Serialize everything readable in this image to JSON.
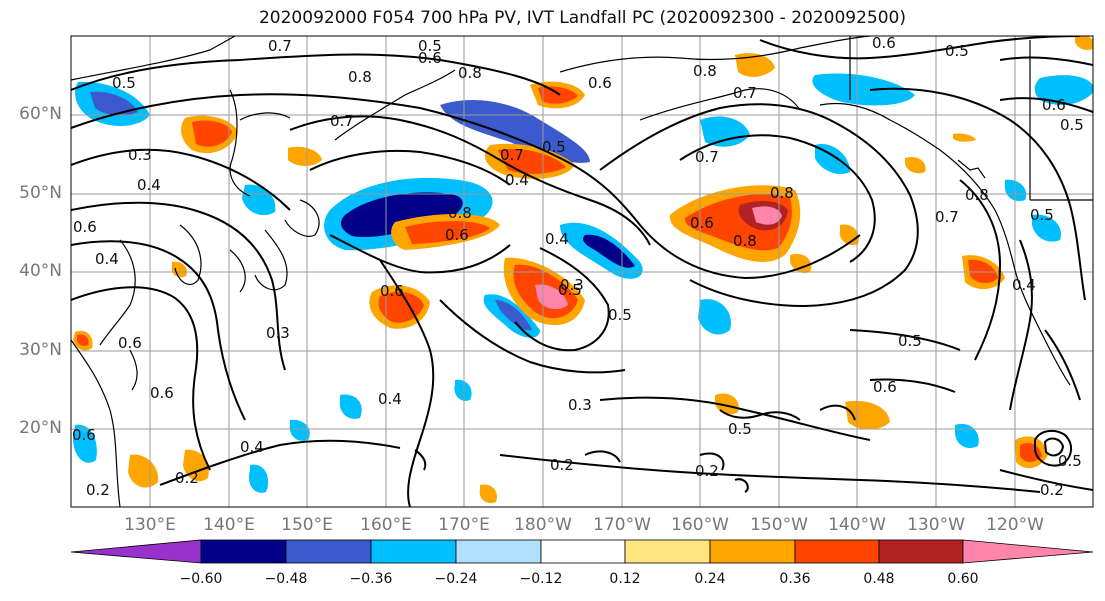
{
  "title": "2020092000 F054 700 hPa PV, IVT Landfall PC (2020092300 - 2020092500)",
  "lat_labels": [
    "60°N",
    "50°N",
    "40°N",
    "30°N",
    "20°N"
  ],
  "lon_labels": [
    "130°E",
    "140°E",
    "150°E",
    "160°E",
    "170°E",
    "180°W",
    "170°W",
    "160°W",
    "150°W",
    "140°W",
    "130°W",
    "120°W"
  ],
  "colorbar": {
    "ticks": [
      "−0.60",
      "−0.48",
      "−0.36",
      "−0.24",
      "−0.12",
      "0.12",
      "0.24",
      "0.36",
      "0.48",
      "0.60"
    ],
    "colors": [
      "#9932cc",
      "#00008b",
      "#3a5acd",
      "#00bfff",
      "#b0e0fb",
      "#ffffff",
      "#ffe680",
      "#ffa500",
      "#ff4500",
      "#b22222",
      "#ff85ab"
    ]
  },
  "contour_labels": [
    "0.7",
    "0.5",
    "0.6",
    "0.8",
    "0.5",
    "0.8",
    "0.6",
    "0.8",
    "0.7",
    "0.6",
    "0.5",
    "0.6",
    "0.5",
    "0.3",
    "0.7",
    "0.4",
    "0.5",
    "0.6",
    "0.7",
    "0.4",
    "0.8",
    "0.6",
    "0.4",
    "0.7",
    "0.6",
    "0.8",
    "0.8",
    "0.4",
    "0.6",
    "0.8",
    "0.7",
    "0.5",
    "0.4",
    "0.5",
    "0.3",
    "0.5",
    "0.6",
    "0.3",
    "0.6",
    "0.6",
    "0.5",
    "0.4",
    "0.3",
    "0.5",
    "0.6",
    "0.4",
    "0.2",
    "0.2",
    "0.2",
    "0.5",
    "0.2",
    "0.2"
  ],
  "colors": {
    "grid": "#9a9a9a",
    "contour": "#000000",
    "axis_label": "#777777"
  }
}
